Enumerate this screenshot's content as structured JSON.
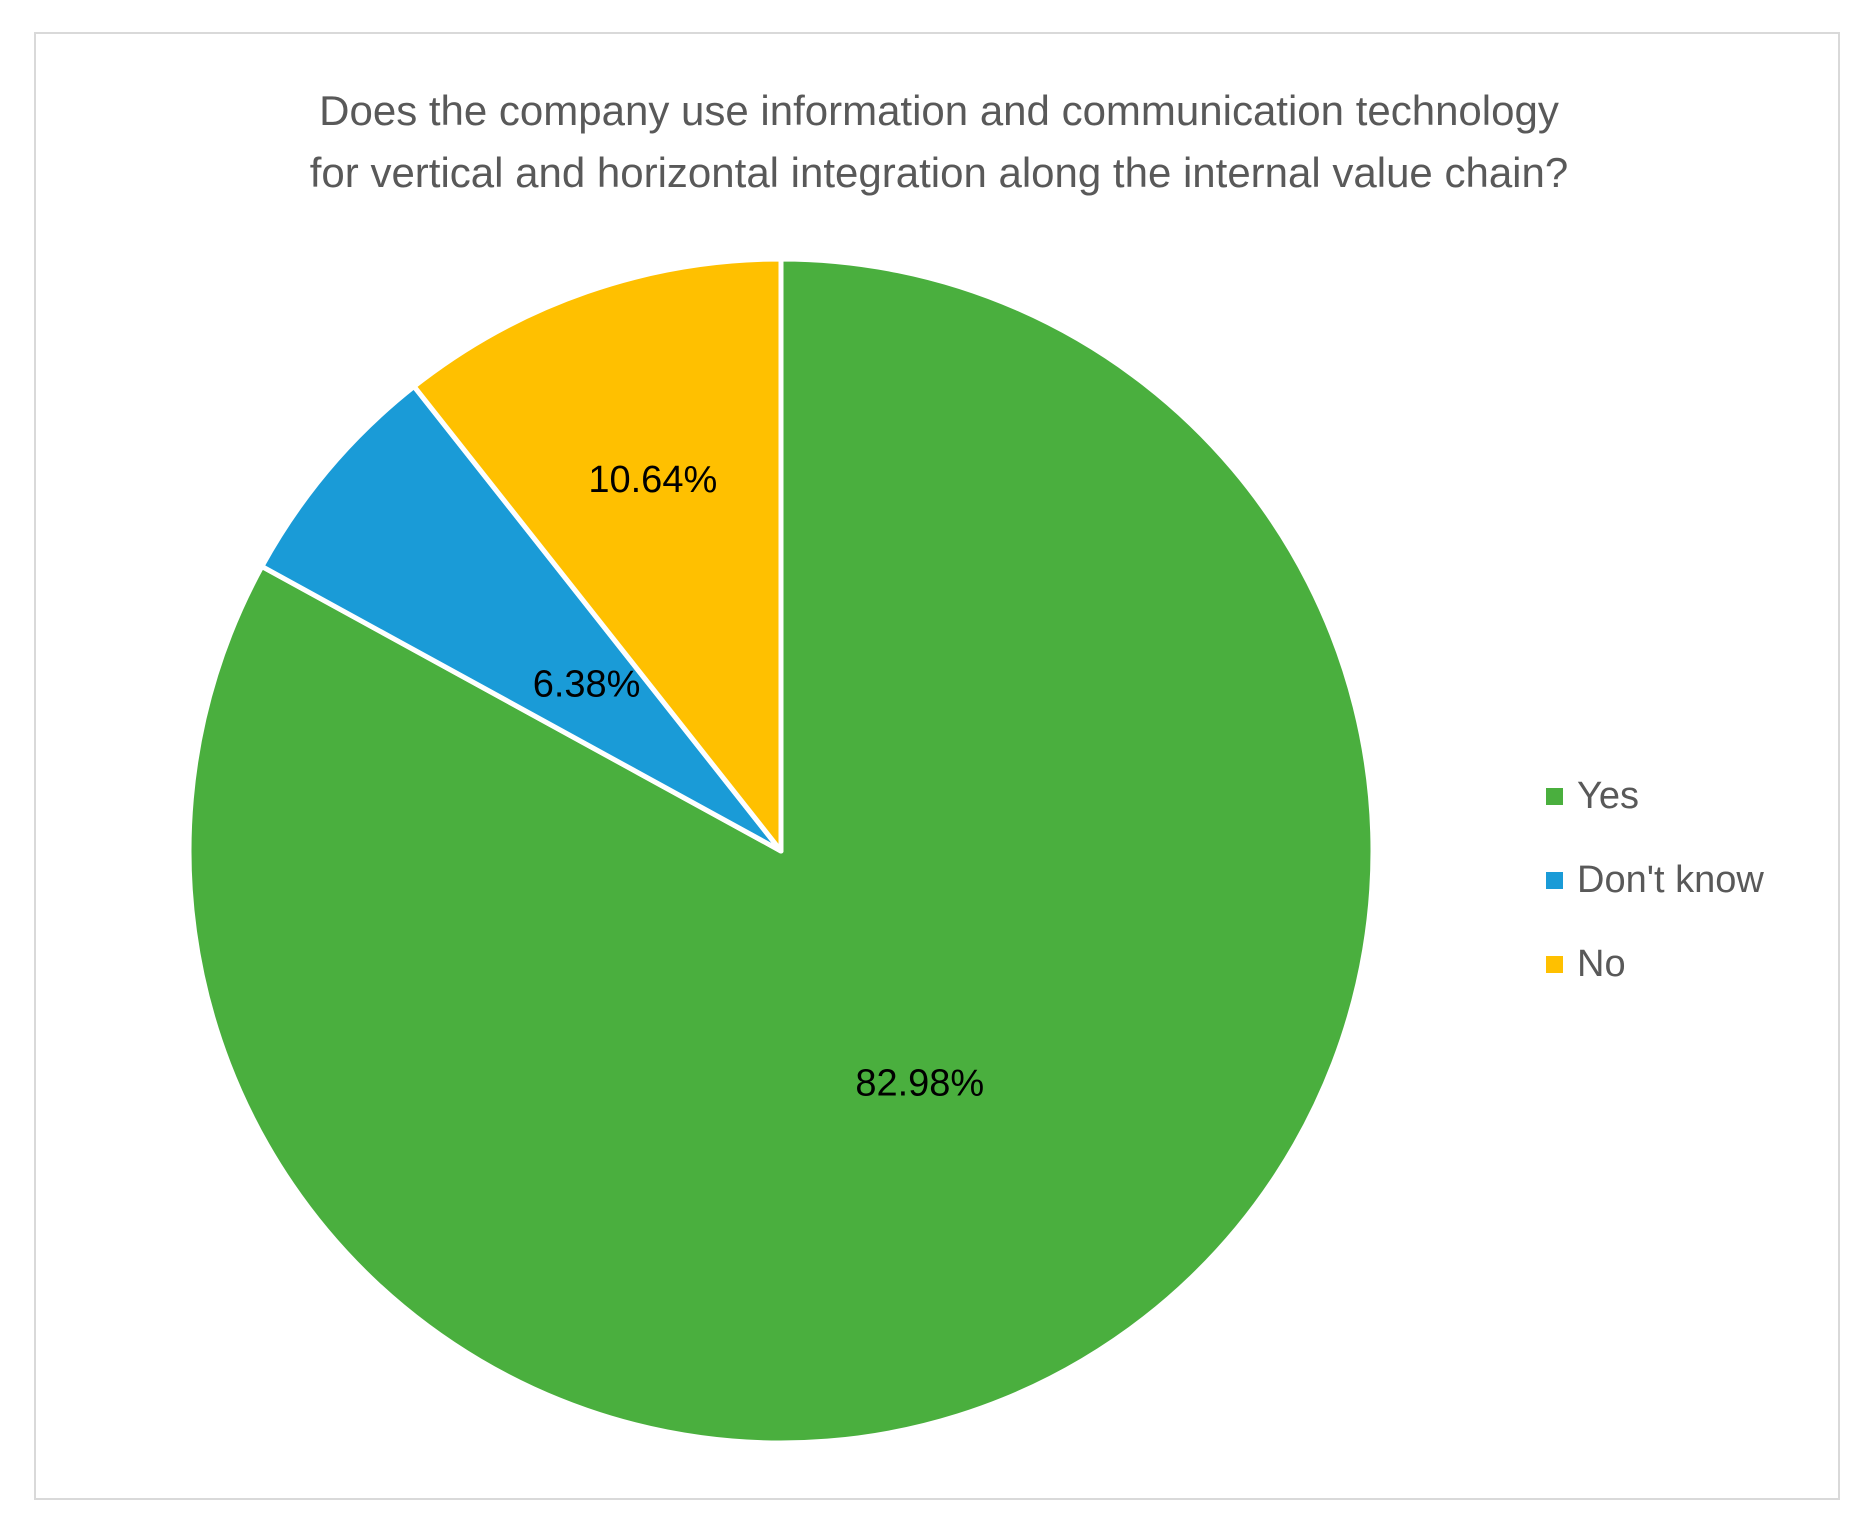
{
  "chart_data": {
    "type": "pie",
    "title_lines": [
      "Does the company use information and communication technology",
      "for vertical and horizontal integration along the internal value chain?"
    ],
    "slices": [
      {
        "label": "Yes",
        "value": 82.98,
        "display": "82.98%",
        "color": "#4aaf3e"
      },
      {
        "label": "Don't know",
        "value": 6.38,
        "display": "6.38%",
        "color": "#1a9bd7"
      },
      {
        "label": "No",
        "value": 10.64,
        "display": "10.64%",
        "color": "#ffc000"
      }
    ],
    "start_angle_deg": 0,
    "direction": "clockwise",
    "legend_position": "right",
    "slice_border_color": "#ffffff"
  }
}
